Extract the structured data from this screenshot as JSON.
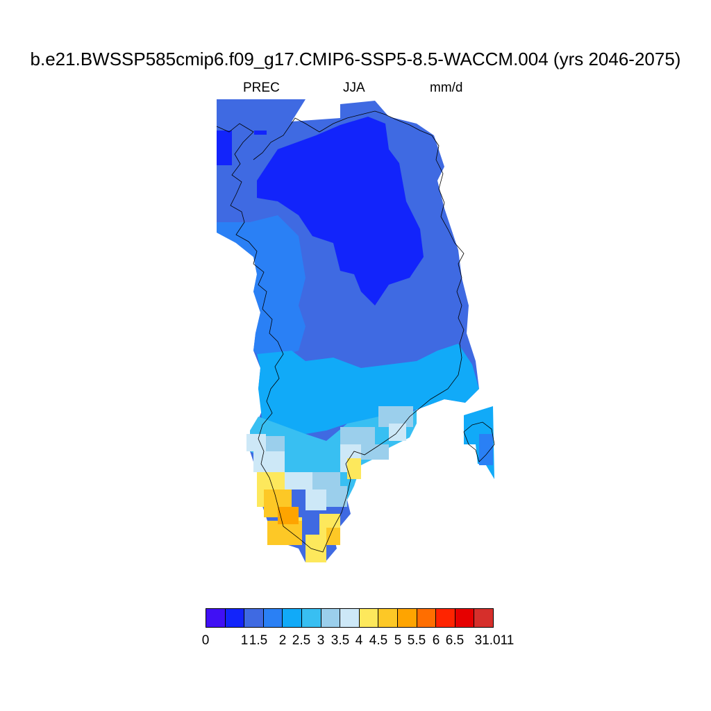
{
  "title": "b.e21.BWSSP585cmip6.f09_g17.CMIP6-SSP5-8.5-WACCM.004 (yrs 2046-2075)",
  "subtitle": {
    "variable": "PREC",
    "season": "JJA",
    "units": "mm/d"
  },
  "colorbar": {
    "colors": [
      "#4010f5",
      "#1224fb",
      "#3f6ae2",
      "#2a80f5",
      "#11aaf8",
      "#38bff2",
      "#9bcfec",
      "#cde8f7",
      "#fde85c",
      "#fdc826",
      "#fea400",
      "#ff6e00",
      "#ff2400",
      "#e60000",
      "#d62f2b"
    ],
    "labels": [
      "0",
      "1",
      "1.5",
      "2",
      "2.5",
      "3",
      "3.5",
      "4",
      "4.5",
      "5",
      "5.5",
      "6",
      "6.5",
      "31.011"
    ]
  },
  "map": {
    "region": "Greenland",
    "coastline": "black thin"
  }
}
